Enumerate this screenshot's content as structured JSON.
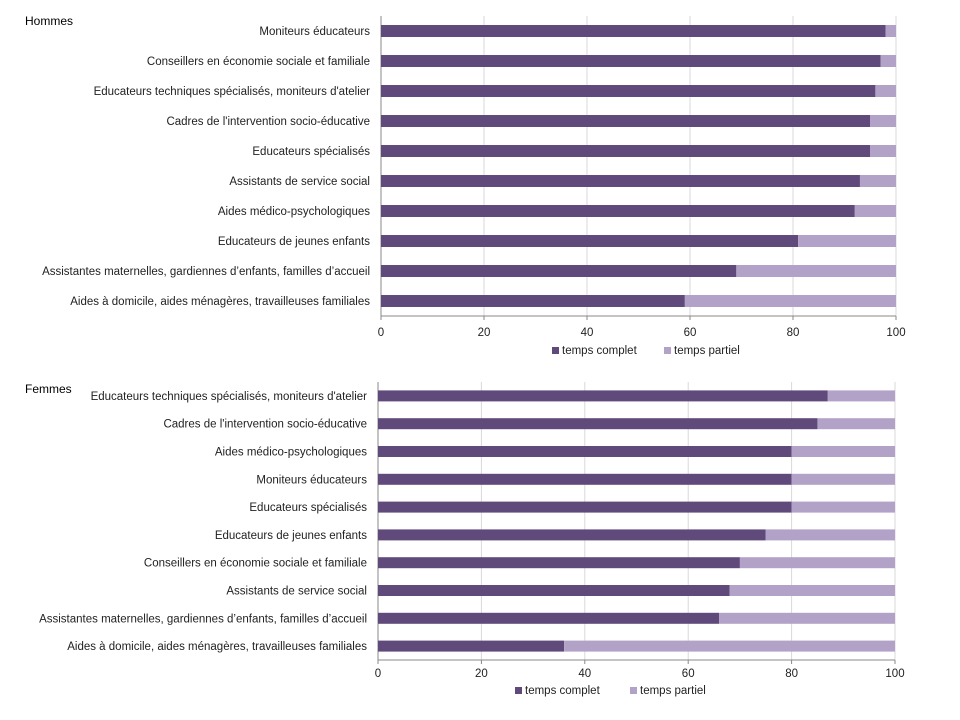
{
  "chart_data": [
    {
      "type": "bar",
      "orientation": "horizontal",
      "stacked": true,
      "title": "Hommes",
      "categories": [
        "Moniteurs éducateurs",
        "Conseillers en économie sociale et familiale",
        "Educateurs techniques spécialisés, moniteurs d'atelier",
        "Cadres de l'intervention socio-éducative",
        "Educateurs spécialisés",
        "Assistants de service social",
        "Aides médico-psychologiques",
        "Educateurs de jeunes enfants",
        "Assistantes maternelles, gardiennes d’enfants, familles d’accueil",
        "Aides à domicile, aides ménagères, travailleuses familiales"
      ],
      "series": [
        {
          "name": "temps complet",
          "color": "#604a7b",
          "values": [
            98,
            97,
            96,
            95,
            95,
            93,
            92,
            81,
            69,
            59
          ]
        },
        {
          "name": "temps partiel",
          "color": "#b3a2c7",
          "values": [
            2,
            3,
            4,
            5,
            5,
            7,
            8,
            19,
            31,
            41
          ]
        }
      ],
      "xlim": [
        0,
        100
      ],
      "xticks": [
        "0",
        "20",
        "40",
        "60",
        "80",
        "100"
      ],
      "grid": true,
      "legend": "bottom"
    },
    {
      "type": "bar",
      "orientation": "horizontal",
      "stacked": true,
      "title": "Femmes",
      "categories": [
        "Educateurs techniques spécialisés, moniteurs d'atelier",
        "Cadres de l'intervention socio-éducative",
        "Aides médico-psychologiques",
        "Moniteurs éducateurs",
        "Educateurs spécialisés",
        "Educateurs de jeunes enfants",
        "Conseillers en économie sociale et familiale",
        "Assistants de service social",
        "Assistantes maternelles, gardiennes d’enfants, familles d’accueil",
        "Aides à domicile, aides ménagères, travailleuses familiales"
      ],
      "series": [
        {
          "name": "temps complet",
          "color": "#604a7b",
          "values": [
            87,
            85,
            80,
            80,
            80,
            75,
            70,
            68,
            66,
            36
          ]
        },
        {
          "name": "temps partiel",
          "color": "#b3a2c7",
          "values": [
            13,
            15,
            20,
            20,
            20,
            25,
            30,
            32,
            34,
            64
          ]
        }
      ],
      "xlim": [
        0,
        100
      ],
      "xticks": [
        "0",
        "20",
        "40",
        "60",
        "80",
        "100"
      ],
      "grid": true,
      "legend": "bottom"
    }
  ]
}
